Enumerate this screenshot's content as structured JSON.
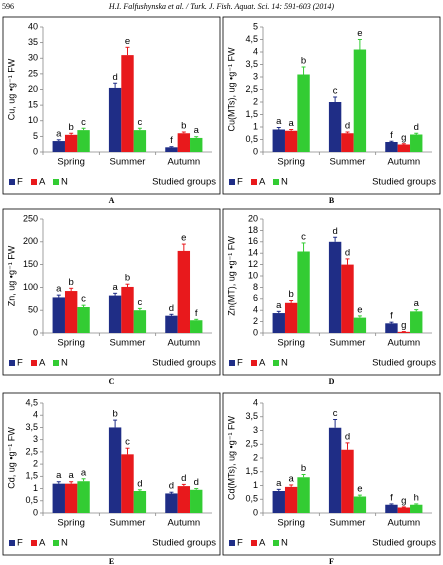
{
  "page_number": "596",
  "running_head": "H.I. Falfushynska et al.  /  Turk. J. Fish. Aquat. Sci. 14: 591-603 (2014)",
  "chart_data": [
    {
      "type": "bar",
      "panel": "A",
      "ylabel": "Cu, ug •g⁻¹ FW",
      "xlabel": "Studied groups",
      "categories": [
        "Spring",
        "Summer",
        "Autumn"
      ],
      "ylim": [
        0,
        40
      ],
      "yticks": [
        0,
        5,
        10,
        15,
        20,
        25,
        30,
        35,
        40
      ],
      "series": [
        {
          "name": "F",
          "color": "#1f2d86",
          "values": [
            3.5,
            20.5,
            1.5
          ],
          "errors": [
            0.4,
            1.5,
            0.2
          ],
          "letters": [
            "a",
            "d",
            "f"
          ]
        },
        {
          "name": "A",
          "color": "#e8191c",
          "values": [
            5.5,
            31,
            6
          ],
          "errors": [
            0.5,
            2.5,
            0.4
          ],
          "letters": [
            "b",
            "e",
            "b"
          ]
        },
        {
          "name": "N",
          "color": "#33cc33",
          "values": [
            7,
            7,
            4.5
          ],
          "errors": [
            0.6,
            0.6,
            0.4
          ],
          "letters": [
            "c",
            "c",
            "a"
          ]
        }
      ]
    },
    {
      "type": "bar",
      "panel": "B",
      "ylabel": "Cu(MTs), ug •g⁻¹ FW",
      "xlabel": "Studied groups",
      "categories": [
        "Spring",
        "Summer",
        "Autumn"
      ],
      "ylim": [
        0,
        5
      ],
      "yticks": [
        0,
        {
          "value": 0.5,
          "label": "0,5"
        },
        1,
        {
          "value": 1.5,
          "label": "1,5"
        },
        2,
        {
          "value": 2.5,
          "label": "2,5"
        },
        3,
        {
          "value": 3.5,
          "label": "3,5"
        },
        4,
        {
          "value": 4.5,
          "label": "4,5"
        },
        5
      ],
      "series": [
        {
          "name": "F",
          "color": "#1f2d86",
          "values": [
            0.9,
            2.0,
            0.4
          ],
          "errors": [
            0.08,
            0.2,
            0.03
          ],
          "letters": [
            "a",
            "c",
            "f"
          ]
        },
        {
          "name": "A",
          "color": "#e8191c",
          "values": [
            0.85,
            0.75,
            0.3
          ],
          "errors": [
            0.05,
            0.05,
            0.03
          ],
          "letters": [
            "a",
            "d",
            "g"
          ]
        },
        {
          "name": "N",
          "color": "#33cc33",
          "values": [
            3.1,
            4.1,
            0.7
          ],
          "errors": [
            0.3,
            0.4,
            0.05
          ],
          "letters": [
            "b",
            "e",
            "d"
          ]
        }
      ]
    },
    {
      "type": "bar",
      "panel": "C",
      "ylabel": "Zn, ug •g⁻¹ FW",
      "xlabel": "Studied groups",
      "categories": [
        "Spring",
        "Summer",
        "Autumn"
      ],
      "ylim": [
        0,
        250
      ],
      "yticks": [
        0,
        50,
        100,
        150,
        200,
        250
      ],
      "series": [
        {
          "name": "F",
          "color": "#1f2d86",
          "values": [
            78,
            82,
            38
          ],
          "errors": [
            5,
            5,
            3
          ],
          "letters": [
            "a",
            "a",
            "d"
          ]
        },
        {
          "name": "A",
          "color": "#e8191c",
          "values": [
            92,
            101,
            180
          ],
          "errors": [
            6,
            6,
            15
          ],
          "letters": [
            "b",
            "b",
            "e"
          ]
        },
        {
          "name": "N",
          "color": "#33cc33",
          "values": [
            57,
            50,
            28
          ],
          "errors": [
            4,
            4,
            2
          ],
          "letters": [
            "c",
            "c",
            "f"
          ]
        }
      ]
    },
    {
      "type": "bar",
      "panel": "D",
      "ylabel": "Zn(MT), ug •g⁻¹ FW",
      "xlabel": "Studied groups",
      "categories": [
        "Spring",
        "Summer",
        "Autumn"
      ],
      "ylim": [
        0,
        20
      ],
      "yticks": [
        0,
        2,
        4,
        6,
        8,
        10,
        12,
        14,
        16,
        18,
        20
      ],
      "series": [
        {
          "name": "F",
          "color": "#1f2d86",
          "values": [
            3.5,
            16,
            1.7
          ],
          "errors": [
            0.3,
            0.8,
            0.2
          ],
          "letters": [
            "a",
            "d",
            "f"
          ]
        },
        {
          "name": "A",
          "color": "#e8191c",
          "values": [
            5.3,
            12,
            0.2
          ],
          "errors": [
            0.4,
            1,
            0.05
          ],
          "letters": [
            "b",
            "d",
            "g"
          ]
        },
        {
          "name": "N",
          "color": "#33cc33",
          "values": [
            14.3,
            2.7,
            3.8
          ],
          "errors": [
            1.5,
            0.3,
            0.3
          ],
          "letters": [
            "c",
            "e",
            "a"
          ]
        }
      ]
    },
    {
      "type": "bar",
      "panel": "E",
      "ylabel": "Cd, ug •g⁻¹ FW",
      "xlabel": "Studied groups",
      "categories": [
        "Spring",
        "Summer",
        "Autumn"
      ],
      "ylim": [
        0,
        4.5
      ],
      "yticks": [
        0,
        {
          "value": 0.5,
          "label": "0,5"
        },
        1,
        {
          "value": 1.5,
          "label": "1,5"
        },
        2,
        {
          "value": 2.5,
          "label": "2,5"
        },
        3,
        {
          "value": 3.5,
          "label": "3,5"
        },
        4,
        {
          "value": 4.5,
          "label": "4,5"
        }
      ],
      "series": [
        {
          "name": "F",
          "color": "#1f2d86",
          "values": [
            1.2,
            3.5,
            0.8
          ],
          "errors": [
            0.08,
            0.3,
            0.05
          ],
          "letters": [
            "a",
            "b",
            "d"
          ]
        },
        {
          "name": "A",
          "color": "#e8191c",
          "values": [
            1.2,
            2.4,
            1.1
          ],
          "errors": [
            0.08,
            0.25,
            0.07
          ],
          "letters": [
            "a",
            "c",
            "d"
          ]
        },
        {
          "name": "N",
          "color": "#33cc33",
          "values": [
            1.3,
            0.9,
            0.95
          ],
          "errors": [
            0.1,
            0.05,
            0.05
          ],
          "letters": [
            "a",
            "d",
            "d"
          ]
        }
      ]
    },
    {
      "type": "bar",
      "panel": "F",
      "ylabel": "Cd(MTs), ug •g⁻¹ FW",
      "xlabel": "Studied groups",
      "categories": [
        "Spring",
        "Summer",
        "Autumn"
      ],
      "ylim": [
        0,
        4
      ],
      "yticks": [
        0,
        {
          "value": 0.5,
          "label": "0,5"
        },
        1,
        {
          "value": 1.5,
          "label": "1,5"
        },
        2,
        {
          "value": 2.5,
          "label": "2,5"
        },
        3,
        {
          "value": 3.5,
          "label": "3,5"
        },
        4
      ],
      "series": [
        {
          "name": "F",
          "color": "#1f2d86",
          "values": [
            0.8,
            3.1,
            0.3
          ],
          "errors": [
            0.06,
            0.3,
            0.03
          ],
          "letters": [
            "a",
            "c",
            "f"
          ]
        },
        {
          "name": "A",
          "color": "#e8191c",
          "values": [
            0.95,
            2.3,
            0.2
          ],
          "errors": [
            0.07,
            0.25,
            0.02
          ],
          "letters": [
            "a",
            "d",
            "g"
          ]
        },
        {
          "name": "N",
          "color": "#33cc33",
          "values": [
            1.3,
            0.6,
            0.3
          ],
          "errors": [
            0.1,
            0.05,
            0.03
          ],
          "letters": [
            "b",
            "e",
            "h"
          ]
        }
      ]
    }
  ]
}
